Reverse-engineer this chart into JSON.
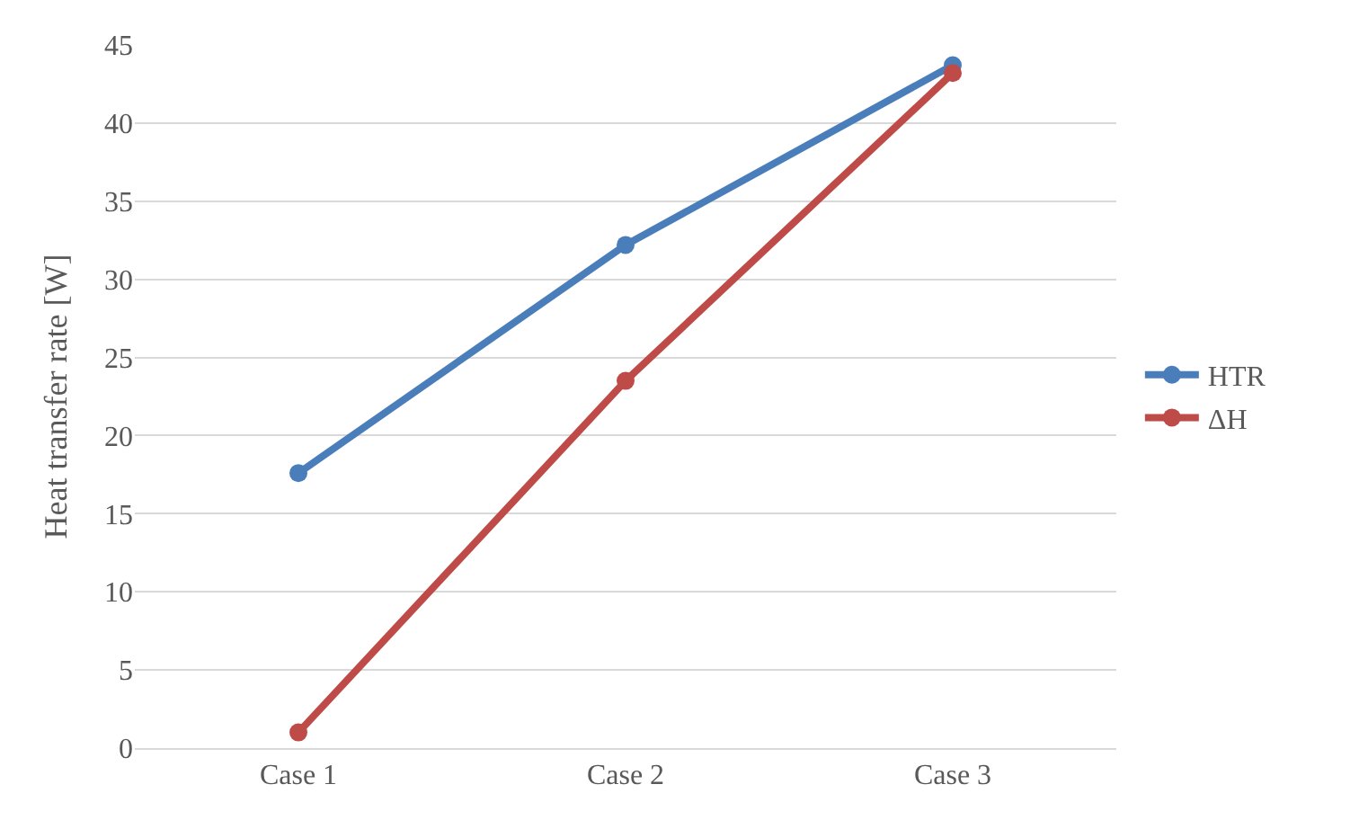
{
  "chart_data": {
    "type": "line",
    "ylabel": "Heat transfer rate [W]",
    "categories": [
      "Case 1",
      "Case 2",
      "Case 3"
    ],
    "series": [
      {
        "name": "HTR",
        "color": "#4a7ebb",
        "values": [
          17.6,
          32.2,
          43.7
        ]
      },
      {
        "name": "ΔH",
        "color": "#be4b48",
        "values": [
          1.0,
          23.5,
          43.2
        ]
      }
    ],
    "ylim": [
      0,
      45
    ],
    "yticks": [
      0,
      5,
      10,
      15,
      20,
      25,
      30,
      35,
      40,
      45
    ],
    "grid": "y",
    "legend": "right",
    "marker": "circle",
    "line_style": "solid"
  }
}
